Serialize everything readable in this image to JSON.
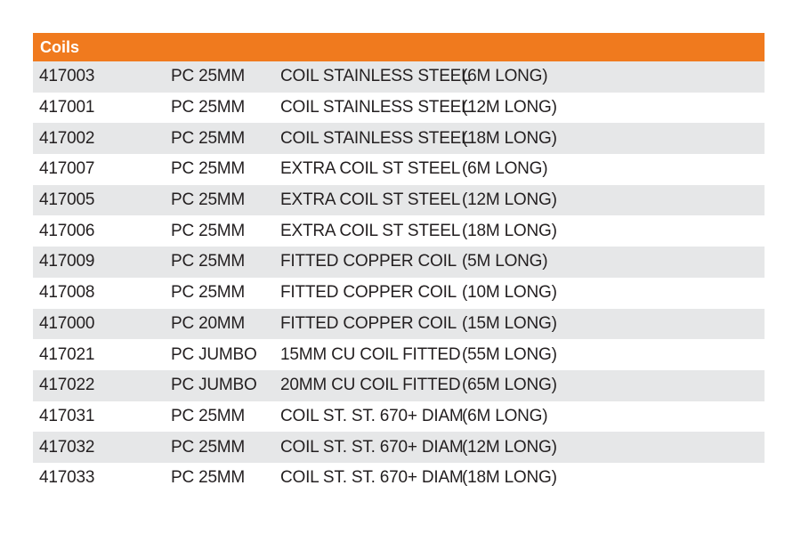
{
  "section": {
    "title": "Coils"
  },
  "rows": [
    {
      "code": "417003",
      "size": "PC 25MM",
      "description": "COIL STAINLESS STEEL",
      "length": "(6M LONG)"
    },
    {
      "code": "417001",
      "size": "PC 25MM",
      "description": "COIL STAINLESS STEEL",
      "length": "(12M LONG)"
    },
    {
      "code": "417002",
      "size": "PC 25MM",
      "description": "COIL STAINLESS STEEL",
      "length": "(18M LONG)"
    },
    {
      "code": "417007",
      "size": "PC 25MM",
      "description": "EXTRA COIL ST STEEL",
      "length": "(6M LONG)"
    },
    {
      "code": "417005",
      "size": "PC 25MM",
      "description": "EXTRA COIL ST STEEL",
      "length": "(12M LONG)"
    },
    {
      "code": "417006",
      "size": "PC 25MM",
      "description": "EXTRA COIL ST STEEL",
      "length": "(18M LONG)"
    },
    {
      "code": "417009",
      "size": "PC 25MM",
      "description": "FITTED COPPER COIL",
      "length": "(5M LONG)"
    },
    {
      "code": "417008",
      "size": "PC 25MM",
      "description": "FITTED COPPER COIL",
      "length": "(10M LONG)"
    },
    {
      "code": "417000",
      "size": "PC 20MM",
      "description": "FITTED COPPER COIL",
      "length": "(15M LONG)"
    },
    {
      "code": "417021",
      "size": "PC JUMBO",
      "description": "15MM CU COIL FITTED",
      "length": "(55M LONG)"
    },
    {
      "code": "417022",
      "size": "PC JUMBO",
      "description": "20MM CU COIL FITTED",
      "length": "(65M LONG)"
    },
    {
      "code": "417031",
      "size": "PC 25MM",
      "description": "COIL ST. ST. 670+ DIAM",
      "length": "(6M LONG)"
    },
    {
      "code": "417032",
      "size": "PC 25MM",
      "description": "COIL ST. ST. 670+ DIAM",
      "length": "(12M LONG)"
    },
    {
      "code": "417033",
      "size": "PC 25MM",
      "description": "COIL ST. ST. 670+ DIAM",
      "length": "(18M LONG)"
    }
  ],
  "colors": {
    "header": "#f07a1e",
    "shaded_row": "#e6e7e8",
    "text": "#231f20"
  }
}
